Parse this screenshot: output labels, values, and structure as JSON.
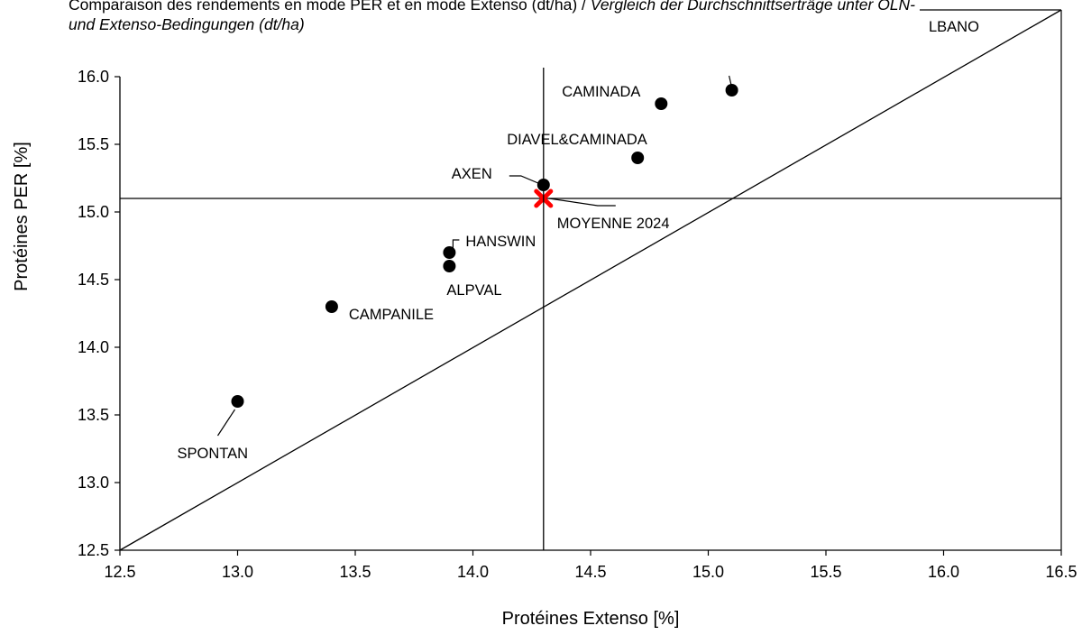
{
  "chart_data": {
    "type": "scatter",
    "title_fr": "Comparaison des rendements en mode PER et en mode Extenso (dt/ha) / ",
    "title_de": "Vergleich der Durchschnittserträge unter ÖLN- und Extenso-Bedingungen (dt/ha)",
    "xlabel": "Protéines Extenso [%]",
    "ylabel": "Protéines PER [%]",
    "xlim": [
      12.5,
      16.5
    ],
    "ylim": [
      12.5,
      16.0
    ],
    "xticks": [
      "12.5",
      "13.0",
      "13.5",
      "14.0",
      "14.5",
      "15.0",
      "15.5",
      "16.0",
      "16.5"
    ],
    "yticks": [
      "12.5",
      "13.0",
      "13.5",
      "14.0",
      "14.5",
      "15.0",
      "15.5",
      "16.0"
    ],
    "grid": false,
    "diagonal_reference_line": true,
    "points": [
      {
        "label": "SPONTAN",
        "x": 13.0,
        "y": 13.6
      },
      {
        "label": "CAMPANILE",
        "x": 13.4,
        "y": 14.3
      },
      {
        "label": "ALPVAL",
        "x": 13.9,
        "y": 14.6
      },
      {
        "label": "HANSWIN",
        "x": 13.9,
        "y": 14.7
      },
      {
        "label": "AXEN",
        "x": 14.3,
        "y": 15.2
      },
      {
        "label": "DIAVEL&CAMINADA",
        "x": 14.7,
        "y": 15.4
      },
      {
        "label": "CAMINADA",
        "x": 14.8,
        "y": 15.8
      },
      {
        "label": "",
        "x": 15.1,
        "y": 15.9
      }
    ],
    "mean": {
      "label": "MOYENNE 2024",
      "x": 14.3,
      "y": 15.1,
      "color": "#ff0000"
    },
    "offscale_label": "LBANO",
    "colors": {
      "points": "#000000",
      "mean_marker": "#ff0000",
      "lines": "#000000"
    }
  }
}
